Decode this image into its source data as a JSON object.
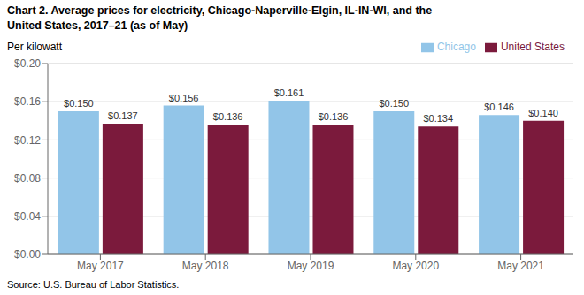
{
  "chart_data": {
    "type": "bar",
    "title": "Chart 2. Average prices for electricity, Chicago-Naperville-Elgin,  IL-IN-WI, and the",
    "subtitle": "United States, 2017–21 (as of May)",
    "y_label": "Per kilowatt",
    "source": "Source: U.S. Bureau of Labor Statistics.",
    "categories": [
      "May 2017",
      "May 2018",
      "May 2019",
      "May 2020",
      "May 2021"
    ],
    "series": [
      {
        "name": "Chicago",
        "color": "#92C5E8",
        "values": [
          0.15,
          0.156,
          0.161,
          0.15,
          0.146
        ],
        "value_labels": [
          "$0.150",
          "$0.156",
          "$0.161",
          "$0.150",
          "$0.146"
        ]
      },
      {
        "name": "United States",
        "color": "#7B1A3C",
        "values": [
          0.137,
          0.136,
          0.136,
          0.134,
          0.14
        ],
        "value_labels": [
          "$0.137",
          "$0.136",
          "$0.136",
          "$0.134",
          "$0.140"
        ]
      }
    ],
    "ylim": [
      0.0,
      0.2
    ],
    "yticks": [
      {
        "value": 0.0,
        "label": "$0.00"
      },
      {
        "value": 0.04,
        "label": "$0.04"
      },
      {
        "value": 0.08,
        "label": "$0.08"
      },
      {
        "value": 0.12,
        "label": "$0.12"
      },
      {
        "value": 0.16,
        "label": "$0.16"
      },
      {
        "value": 0.2,
        "label": "$0.20"
      }
    ],
    "grid": true,
    "legend": "top-right",
    "data_labels": true
  }
}
